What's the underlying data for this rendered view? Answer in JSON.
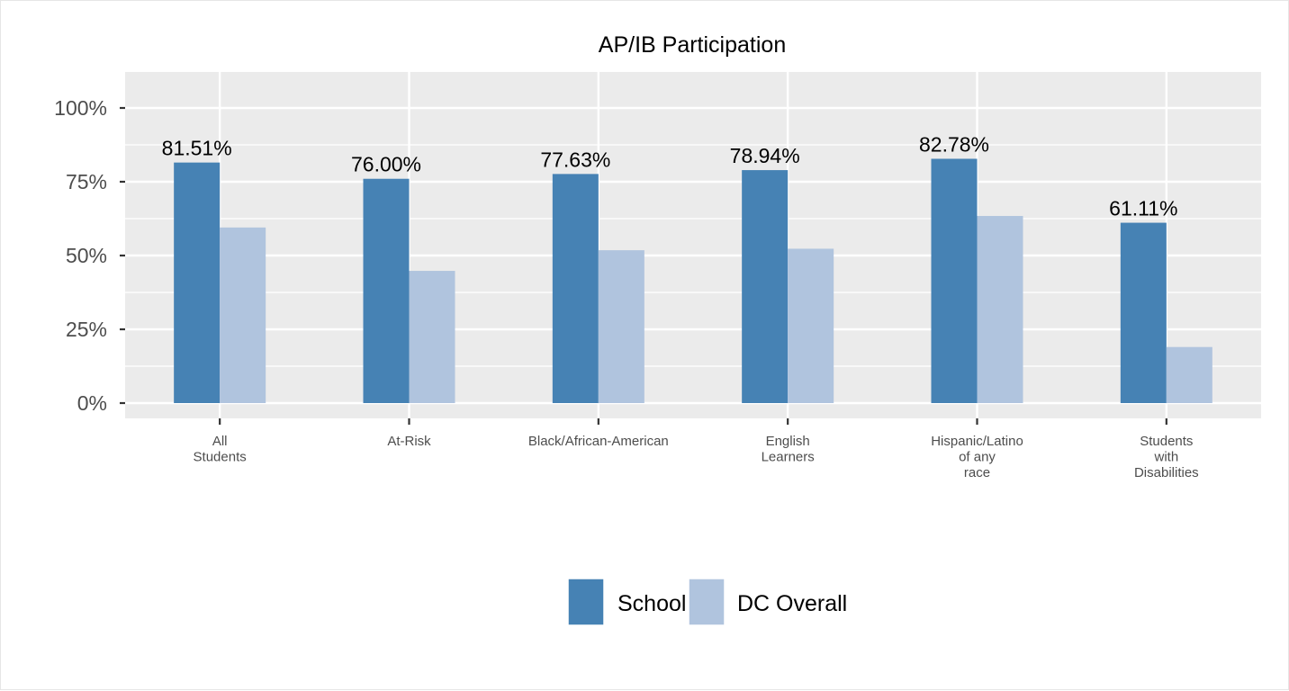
{
  "chart_data": {
    "type": "bar",
    "title": "AP/IB Participation",
    "xlabel": "",
    "ylabel": "",
    "categories": [
      [
        "All",
        "Students"
      ],
      [
        "At-Risk"
      ],
      [
        "Black/African-American"
      ],
      [
        "English",
        "Learners"
      ],
      [
        "Hispanic/Latino",
        "of any",
        "race"
      ],
      [
        "Students",
        "with",
        "Disabilities"
      ]
    ],
    "series": [
      {
        "name": "School",
        "color": "#4682b4",
        "values": [
          81.51,
          76.0,
          77.63,
          78.94,
          82.78,
          61.11
        ],
        "labels": [
          "81.51%",
          "76.00%",
          "77.63%",
          "78.94%",
          "82.78%",
          "61.11%"
        ]
      },
      {
        "name": "DC Overall",
        "color": "#b0c4de",
        "values": [
          59.5,
          44.8,
          51.8,
          52.3,
          63.4,
          19.0
        ]
      }
    ],
    "ylim": [
      0,
      105
    ],
    "yticks": [
      0,
      25,
      50,
      75,
      100
    ],
    "ytick_labels": [
      "0%",
      "25%",
      "50%",
      "75%",
      "100%"
    ],
    "grid": true,
    "legend_position": "bottom",
    "panel_color": "#ebebeb"
  }
}
